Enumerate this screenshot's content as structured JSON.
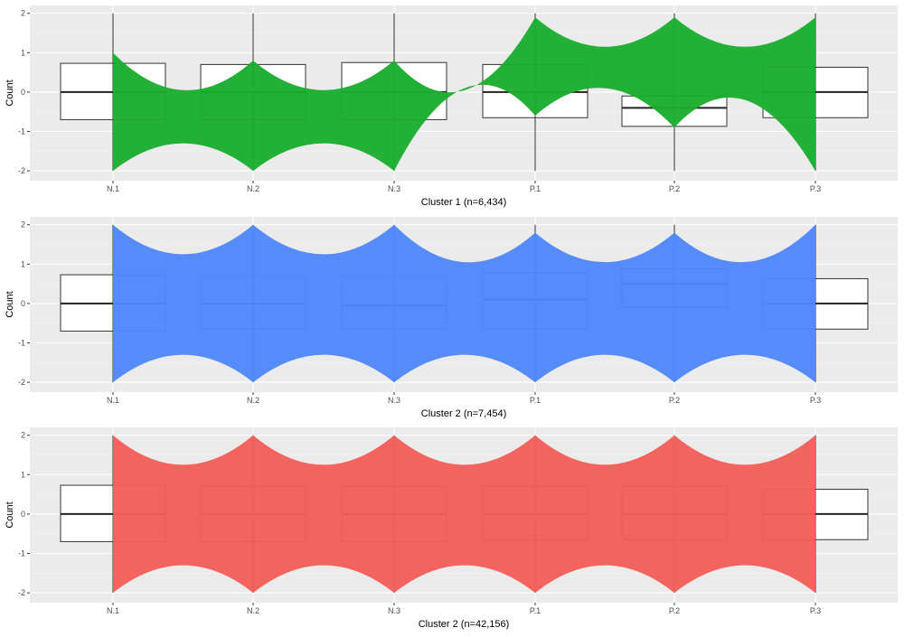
{
  "chart_data": [
    {
      "type": "parallel-coordinates",
      "xlabel": "Cluster 1 (n=6,434)",
      "ylabel": "Count",
      "categories": [
        "N.1",
        "N.2",
        "N.3",
        "P.1",
        "P.2",
        "P.3"
      ],
      "y_ticks": [
        "2",
        "1",
        "0",
        "-1",
        "-2"
      ],
      "ylim": [
        -2.25,
        2.2
      ],
      "grid": true,
      "series_color": "#1aad2e",
      "band": {
        "upper": [
          1.0,
          0.8,
          0.8,
          1.9,
          1.9,
          1.9
        ],
        "lower": [
          -2.0,
          -2.0,
          -2.0,
          -0.6,
          -0.9,
          -2.0
        ]
      },
      "boxes": [
        {
          "category": "N.1",
          "q1": -0.7,
          "median": 0.0,
          "q3": 0.73
        },
        {
          "category": "N.2",
          "q1": -0.7,
          "median": 0.0,
          "q3": 0.7
        },
        {
          "category": "N.3",
          "q1": -0.7,
          "median": 0.0,
          "q3": 0.75
        },
        {
          "category": "P.1",
          "q1": -0.65,
          "median": 0.0,
          "q3": 0.7
        },
        {
          "category": "P.2",
          "q1": -0.87,
          "median": -0.4,
          "q3": -0.1
        },
        {
          "category": "P.3",
          "q1": -0.65,
          "median": 0.0,
          "q3": 0.63
        }
      ]
    },
    {
      "type": "parallel-coordinates",
      "xlabel": "Cluster 2 (n=7,454)",
      "ylabel": "Count",
      "categories": [
        "N.1",
        "N.2",
        "N.3",
        "P.1",
        "P.2",
        "P.3"
      ],
      "y_ticks": [
        "2",
        "1",
        "0",
        "-1",
        "-2"
      ],
      "ylim": [
        -2.25,
        2.2
      ],
      "grid": true,
      "series_color": "#4f86fb",
      "band": {
        "upper": [
          2.0,
          2.0,
          2.0,
          1.8,
          1.8,
          2.0
        ],
        "lower": [
          -2.0,
          -2.0,
          -2.0,
          -2.0,
          -2.0,
          -2.0
        ]
      },
      "boxes": [
        {
          "category": "N.1",
          "q1": -0.7,
          "median": 0.0,
          "q3": 0.73
        },
        {
          "category": "N.2",
          "q1": -0.65,
          "median": 0.0,
          "q3": 0.7
        },
        {
          "category": "N.3",
          "q1": -0.65,
          "median": -0.05,
          "q3": 0.7
        },
        {
          "category": "P.1",
          "q1": -0.65,
          "median": 0.1,
          "q3": 0.78
        },
        {
          "category": "P.2",
          "q1": -0.1,
          "median": 0.5,
          "q3": 0.88
        },
        {
          "category": "P.3",
          "q1": -0.65,
          "median": 0.0,
          "q3": 0.63
        }
      ]
    },
    {
      "type": "parallel-coordinates",
      "xlabel": "Cluster 2 (n=42,156)",
      "ylabel": "Count",
      "categories": [
        "N.1",
        "N.2",
        "N.3",
        "P.1",
        "P.2",
        "P.3"
      ],
      "y_ticks": [
        "2",
        "1",
        "0",
        "-1",
        "-2"
      ],
      "ylim": [
        -2.25,
        2.2
      ],
      "grid": true,
      "series_color": "#f45e58",
      "band": {
        "upper": [
          2.0,
          2.0,
          2.0,
          2.0,
          2.0,
          2.0
        ],
        "lower": [
          -2.0,
          -2.0,
          -2.0,
          -2.0,
          -2.0,
          -2.0
        ]
      },
      "boxes": [
        {
          "category": "N.1",
          "q1": -0.7,
          "median": 0.0,
          "q3": 0.73
        },
        {
          "category": "N.2",
          "q1": -0.7,
          "median": 0.0,
          "q3": 0.7
        },
        {
          "category": "N.3",
          "q1": -0.7,
          "median": 0.0,
          "q3": 0.7
        },
        {
          "category": "P.1",
          "q1": -0.65,
          "median": 0.0,
          "q3": 0.7
        },
        {
          "category": "P.2",
          "q1": -0.65,
          "median": 0.0,
          "q3": 0.7
        },
        {
          "category": "P.3",
          "q1": -0.65,
          "median": 0.0,
          "q3": 0.63
        }
      ]
    }
  ]
}
